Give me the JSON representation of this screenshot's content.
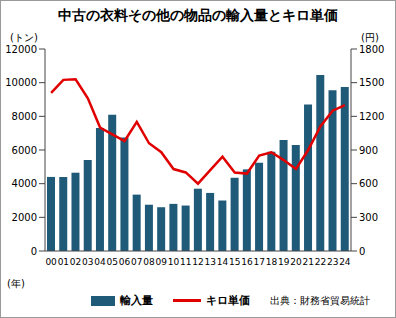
{
  "chart_data": {
    "type": "bar",
    "title": "中古の衣料その他の物品の輸入量とキロ単価",
    "x_label": "(年)",
    "y_label": "(トン)",
    "y2_label": "(円)",
    "source": "出典：財務省貿易統計",
    "categories": [
      "00",
      "01",
      "02",
      "03",
      "04",
      "05",
      "06",
      "07",
      "08",
      "09",
      "10",
      "11",
      "12",
      "13",
      "14",
      "15",
      "16",
      "17",
      "18",
      "19",
      "20",
      "21",
      "22",
      "23",
      "24"
    ],
    "series": [
      {
        "name": "輸入量",
        "type": "bar",
        "color": "#1f5a78",
        "values": [
          4400,
          4400,
          4650,
          5400,
          7300,
          8100,
          6750,
          3350,
          2750,
          2600,
          2800,
          2700,
          3700,
          3450,
          3000,
          4350,
          4850,
          5250,
          5900,
          6600,
          6300,
          8700,
          10450,
          9550,
          9750
        ]
      },
      {
        "name": "キロ単価",
        "type": "line",
        "axis": "y2",
        "color": "#e00000",
        "marker": "none",
        "values": [
          1410,
          1525,
          1530,
          1360,
          1100,
          1040,
          980,
          1150,
          960,
          880,
          730,
          700,
          600,
          720,
          840,
          700,
          690,
          850,
          880,
          810,
          730,
          900,
          1110,
          1250,
          1300
        ]
      }
    ],
    "ylim": [
      0,
      12000
    ],
    "yticks": [
      0,
      2000,
      4000,
      6000,
      8000,
      10000,
      12000
    ],
    "y2lim": [
      0,
      1800
    ],
    "y2ticks": [
      0,
      300,
      600,
      900,
      1200,
      1500,
      1800
    ],
    "grid": false,
    "legend": "bottom"
  }
}
